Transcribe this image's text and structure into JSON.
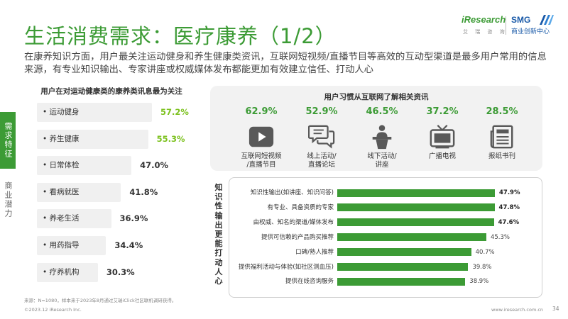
{
  "header": {
    "title": "生活消费需求：医疗康养（1/2）",
    "logo_iresearch": "iResearch",
    "logo_iresearch_sub": "艾 瑞 咨 询",
    "logo_smg": "SMG",
    "logo_smg_sub": "商业创新中心"
  },
  "description": "在康养知识方面，用户最关注运动健身和养生健康类资讯，互联网短视频/直播节目等高效的互动型渠道是最多用户常用的信息来源，有专业知识输出、专家讲座或权威媒体发布都能更加有效建立信任、打动人心",
  "sidebar": {
    "items": [
      {
        "label": "需求特征",
        "active": true
      },
      {
        "label": "商业潜力",
        "active": false
      }
    ]
  },
  "colors": {
    "accent": "#3c9b35",
    "highlight_value": "#7cc11e",
    "bar_bg": "#f0f0f0",
    "panel_bg": "#f2f2f2"
  },
  "chart_data": [
    {
      "type": "bar",
      "title": "用户在对运动健康类的康养类讯息最为关注",
      "categories": [
        "运动健身",
        "养生健康",
        "日常体检",
        "看病就医",
        "养老生活",
        "用药指导",
        "疗养机构"
      ],
      "values": [
        57.2,
        55.3,
        47.0,
        41.8,
        36.9,
        34.4,
        30.3
      ],
      "value_labels": [
        "57.2%",
        "55.3%",
        "47.0%",
        "41.8%",
        "36.9%",
        "34.4%",
        "30.3%"
      ],
      "highlighted": [
        true,
        true,
        false,
        false,
        false,
        false,
        false
      ]
    },
    {
      "type": "table",
      "title": "用户习惯从互联网了解相关资讯",
      "categories": [
        "互联网短视频/直播节目",
        "线上活动/直播论坛",
        "线下活动/讲座",
        "广播电视",
        "报纸书刊"
      ],
      "name_lines": [
        [
          "互联网短视频",
          "/直播节目"
        ],
        [
          "线上活动/",
          "直播论坛"
        ],
        [
          "线下活动/",
          "讲座"
        ],
        [
          "广播电视"
        ],
        [
          "报纸书刊"
        ]
      ],
      "values": [
        62.9,
        52.9,
        46.5,
        37.2,
        28.5
      ],
      "value_labels": [
        "62.9%",
        "52.9%",
        "46.5%",
        "37.2%",
        "28.5%"
      ],
      "icons": [
        "video-play-icon",
        "chat-bubbles-icon",
        "podium-speaker-icon",
        "television-icon",
        "newspaper-icon"
      ]
    },
    {
      "type": "bar",
      "title": "知识性输出更能打动人心",
      "categories": [
        "知识性输出(如讲座、知识问答)",
        "有专业、具备资质的专家",
        "由权威、知名的渠道/媒体发布",
        "提供可信赖的产品购买推荐",
        "口碑/熟人推荐",
        "提供福利活动与体验(如社区测血压)",
        "提供在线咨询服务"
      ],
      "values": [
        47.9,
        47.8,
        47.6,
        45.3,
        40.7,
        39.8,
        38.9
      ],
      "value_labels": [
        "47.9%",
        "47.8%",
        "47.6%",
        "45.3%",
        "40.7%",
        "39.8%",
        "38.9%"
      ],
      "highlighted": [
        true,
        true,
        true,
        false,
        false,
        false,
        false
      ]
    }
  ],
  "footer": {
    "source": "来源：N=1080，样本来于2023年8月通过艾瑞iClick社区联机调研获得。",
    "copyright": "©2023.12 iResearch Inc.",
    "website": "www.iresearch.com.cn",
    "page_number": "34"
  }
}
